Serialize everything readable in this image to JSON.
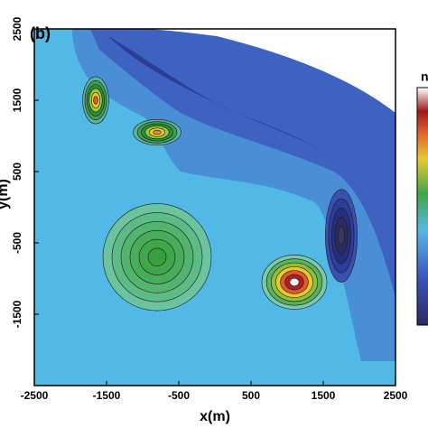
{
  "chart_data": {
    "type": "contour",
    "panel_label": "(b)",
    "xlabel": "x(m)",
    "ylabel": "y(m)",
    "colorbar_label": "n",
    "xlim": [
      -2500,
      2500
    ],
    "ylim": [
      -2500,
      2500
    ],
    "xticks": [
      -2500,
      -1500,
      -500,
      500,
      1500,
      2500
    ],
    "yticks": [
      -1500,
      -500,
      500,
      1500,
      2500
    ],
    "background_color": "#52b9e6",
    "peaks": [
      {
        "x": -800,
        "y": -700,
        "x_extent": 750,
        "y_extent": 750,
        "colors": [
          "#6cc3a0",
          "#5dbb86",
          "#51b46f",
          "#47ad5b",
          "#3fa64a",
          "#389f3d"
        ]
      },
      {
        "x": -1650,
        "y": 1500,
        "x_extent": 180,
        "y_extent": 330,
        "colors": [
          "#5ab3a0",
          "#3e9e50",
          "#2c8c3a",
          "#9bc93a",
          "#e8c92c",
          "#e0582c"
        ]
      },
      {
        "x": -800,
        "y": 1050,
        "x_extent": 330,
        "y_extent": 180,
        "colors": [
          "#5ab3a0",
          "#3e9e50",
          "#2c8c3a",
          "#9bc93a",
          "#e8c92c",
          "#e88a2c"
        ]
      },
      {
        "x": 1100,
        "y": -1050,
        "x_extent": 450,
        "y_extent": 380,
        "colors": [
          "#7cc9a8",
          "#58b060",
          "#8fbf3a",
          "#e8c92c",
          "#e0582c",
          "#b01e1e",
          "#f4f4f4"
        ]
      },
      {
        "x": 1750,
        "y": -400,
        "x_extent": 220,
        "y_extent": 650,
        "colors": [
          "#3a4fb0",
          "#2e3e98",
          "#262f7e",
          "#2a2a60",
          "#3a3a58"
        ]
      }
    ]
  }
}
